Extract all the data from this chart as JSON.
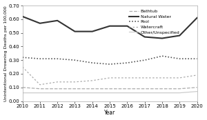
{
  "years": [
    2010,
    2011,
    2012,
    2013,
    2014,
    2015,
    2016,
    2017,
    2018,
    2019,
    2020
  ],
  "natural_water": [
    0.62,
    0.57,
    0.59,
    0.51,
    0.51,
    0.55,
    0.55,
    0.47,
    0.46,
    0.48,
    0.61
  ],
  "pool": [
    0.32,
    0.31,
    0.31,
    0.3,
    0.28,
    0.27,
    0.28,
    0.3,
    0.33,
    0.31,
    0.31
  ],
  "watercraft": [
    0.25,
    0.12,
    0.14,
    0.14,
    0.15,
    0.17,
    0.17,
    0.17,
    0.17,
    0.17,
    0.19
  ],
  "bathtub": [
    0.1,
    0.09,
    0.09,
    0.09,
    0.09,
    0.09,
    0.09,
    0.09,
    0.09,
    0.09,
    0.1
  ],
  "other": [
    0.06,
    0.06,
    0.06,
    0.06,
    0.06,
    0.06,
    0.06,
    0.06,
    0.06,
    0.06,
    0.07
  ],
  "ylabel": "Unintentional Drowning Deaths per 100,000",
  "xlabel": "Year",
  "ylim": [
    0.0,
    0.7
  ],
  "yticks": [
    0.0,
    0.1,
    0.2,
    0.3,
    0.4,
    0.5,
    0.6,
    0.7
  ],
  "natural_water_color": "#333333",
  "natural_water_lw": 1.5,
  "pool_color": "#555555",
  "pool_lw": 1.2,
  "watercraft_color": "#aaaaaa",
  "watercraft_lw": 0.9,
  "bathtub_color": "#aaaaaa",
  "bathtub_lw": 0.9,
  "other_color": "#cccccc",
  "other_lw": 0.9,
  "tick_fontsize": 5.0,
  "ylabel_fontsize": 4.5,
  "xlabel_fontsize": 5.5,
  "legend_fontsize": 4.5
}
